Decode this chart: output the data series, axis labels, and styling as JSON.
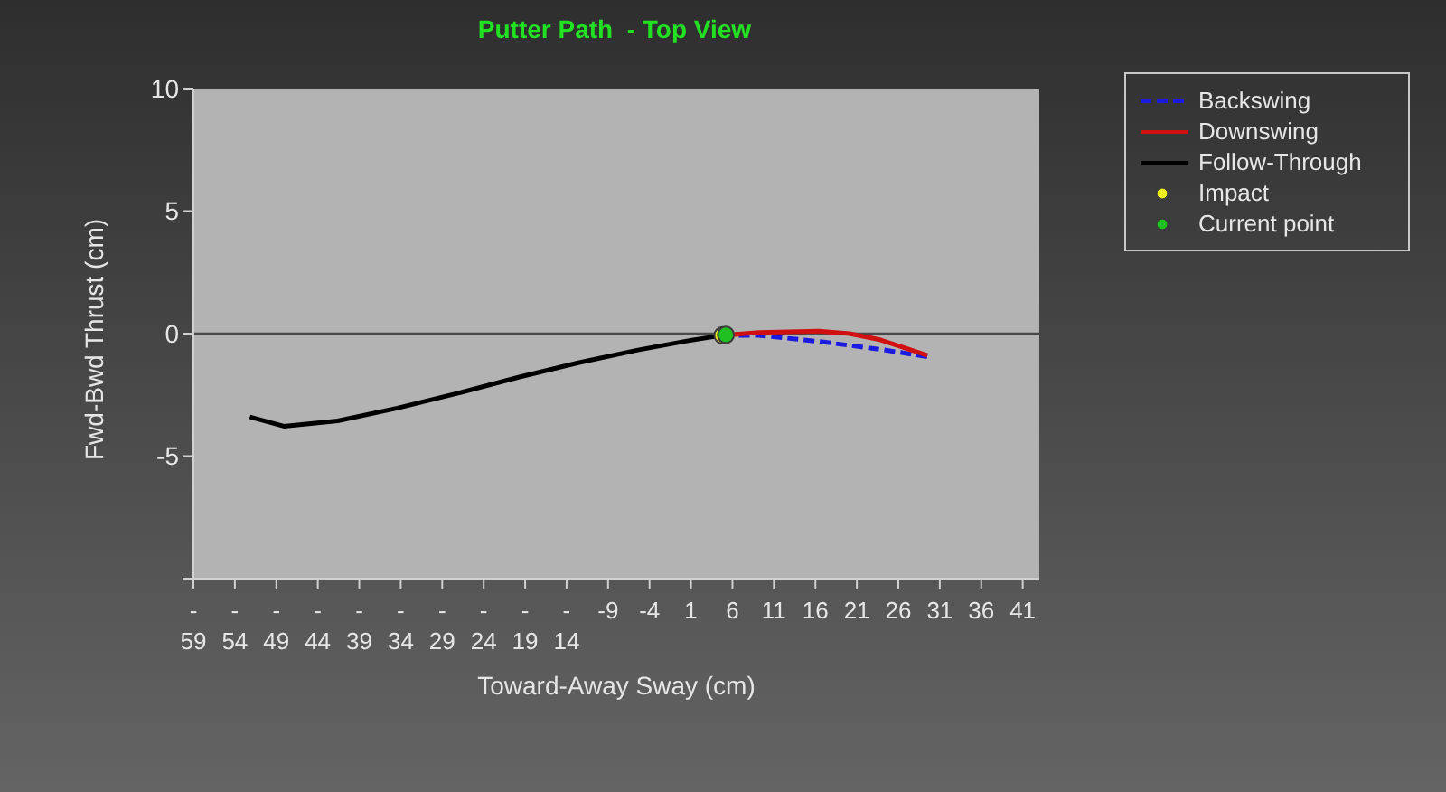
{
  "chart_data": {
    "type": "line",
    "title": "Putter Path  - Top View",
    "xlabel": "Toward-Away Sway (cm)",
    "ylabel": "Fwd-Bwd Thrust (cm)",
    "xlim": [
      -59,
      43
    ],
    "xticks": [
      -59,
      -54,
      -49,
      -44,
      -39,
      -34,
      -29,
      -24,
      -19,
      -14,
      -9,
      -4,
      1,
      6,
      11,
      16,
      21,
      26,
      31,
      36,
      41
    ],
    "ylim": [
      -10,
      10
    ],
    "yticks": [
      {
        "value": -10,
        "label": null
      },
      -5,
      0,
      5,
      10
    ],
    "ref_lines": [
      {
        "axis": "y",
        "value": 0,
        "color": "#4a4a4a"
      }
    ],
    "grid": false,
    "legend": "top right",
    "series": [
      {
        "name": "Backswing",
        "color": "#1a1ae0",
        "line_style": "dashed",
        "x": [
          4.8,
          9.2,
          16.4,
          23.8,
          29.5
        ],
        "values": [
          -0.07,
          -0.07,
          -0.32,
          -0.64,
          -0.94
        ]
      },
      {
        "name": "Downswing",
        "color": "#d01010",
        "line_style": "solid",
        "x": [
          4.8,
          9.2,
          16.4,
          20.1,
          23.8,
          27.3,
          29.5
        ],
        "values": [
          -0.07,
          0.05,
          0.1,
          0,
          -0.25,
          -0.64,
          -0.89
        ]
      },
      {
        "name": "Follow-Through",
        "color": "#000000",
        "line_style": "solid",
        "x": [
          4.8,
          0.5,
          -5.4,
          -12.6,
          -19.8,
          -27.2,
          -34.4,
          -41.6,
          -48.1,
          -52.2
        ],
        "values": [
          -0.07,
          -0.3,
          -0.67,
          -1.19,
          -1.78,
          -2.44,
          -3.04,
          -3.56,
          -3.78,
          -3.4
        ]
      },
      {
        "name": "Impact",
        "type": "scatter",
        "color": "#f0f020",
        "marker": "circle",
        "x": [
          4.8
        ],
        "values": [
          -0.07
        ]
      },
      {
        "name": "Current point",
        "type": "scatter",
        "color": "#20c020",
        "marker": "circle",
        "x": [
          5.2
        ],
        "values": [
          -0.05
        ]
      }
    ]
  }
}
